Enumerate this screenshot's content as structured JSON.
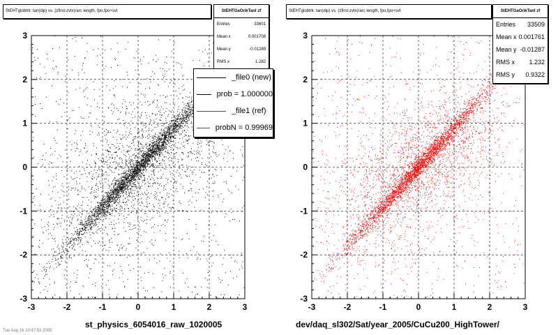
{
  "colors": {
    "left_points": "#000000",
    "right_points": "#ff0000",
    "grid": "#000000"
  },
  "chart_data": [
    {
      "type": "scatter",
      "title": "StEHTglobtrk: tan(dip) vs. (zfirst-zvtx)/arc length, fpo,fpo+svt",
      "xlabel": "st_physics_6054016_raw_1020005",
      "xlim": [
        -3,
        3
      ],
      "ylim": [
        -3,
        3
      ],
      "xticks": [
        "-3",
        "-2",
        "-1",
        "0",
        "1",
        "2",
        "3"
      ],
      "yticks": [
        "-3",
        "-2",
        "-1",
        "0",
        "1",
        "2",
        "3"
      ],
      "grid": true,
      "point_color": "#000000",
      "stats": {
        "name": "StEHTGaOrikTanl zf",
        "rows": [
          {
            "label": "Entries",
            "value": "33601"
          },
          {
            "label": "Mean x",
            "value": "0.001708"
          },
          {
            "label": "Mean y",
            "value": "-0.01289"
          },
          {
            "label": "RMS x",
            "value": "1.282"
          }
        ]
      },
      "legend": {
        "placement": "top-right",
        "entries": [
          {
            "label": "_file0 (new)",
            "color": "#000000"
          },
          {
            "label": "prob = 1.000000",
            "color": "#000000"
          },
          {
            "label": "_file1 (ref)",
            "color": "#ff0000"
          },
          {
            "label": "probN = 0.99969",
            "color": "#ff0000"
          }
        ]
      }
    },
    {
      "type": "scatter",
      "title": "StEHTglobtrk: tan(dip) vs. (zfirst-zvtx)/arc length, fpo,fpo+svt",
      "xlabel": "dev/daq_sl302/Sat/year_2005/CuCu200_HighTower/",
      "xlim": [
        -3,
        3
      ],
      "ylim": [
        -3,
        3
      ],
      "xticks": [
        "-3",
        "-2",
        "-1",
        "0",
        "1",
        "2",
        "3"
      ],
      "yticks": [
        "-3",
        "-2",
        "-1",
        "0",
        "1",
        "2",
        "3"
      ],
      "grid": true,
      "point_color": "#ff0000",
      "stats": {
        "name": "StEHTGaOrikTanl zf",
        "rows": [
          {
            "label": "Entries",
            "value": "33509"
          },
          {
            "label": "Mean x",
            "value": "0.001761"
          },
          {
            "label": "Mean y",
            "value": "-0.01287"
          },
          {
            "label": "RMS x",
            "value": "1.232"
          },
          {
            "label": "RMS y",
            "value": "0.9322"
          }
        ]
      }
    }
  ],
  "footnote": "Tue Aug 16 10:47:52 2005"
}
